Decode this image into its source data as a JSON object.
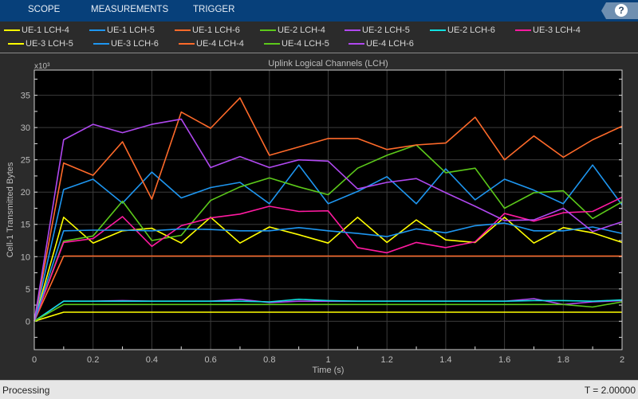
{
  "toolbar": {
    "tabs": [
      "SCOPE",
      "MEASUREMENTS",
      "TRIGGER"
    ],
    "help_label": "?"
  },
  "legend": [
    {
      "label": "UE-1 LCH-4",
      "color": "#ffff00"
    },
    {
      "label": "UE-1 LCH-5",
      "color": "#1e96f0"
    },
    {
      "label": "UE-1 LCH-6",
      "color": "#ff6a2a"
    },
    {
      "label": "UE-2 LCH-4",
      "color": "#5cc91a"
    },
    {
      "label": "UE-2 LCH-5",
      "color": "#b048f0"
    },
    {
      "label": "UE-2 LCH-6",
      "color": "#10e0e0"
    },
    {
      "label": "UE-3 LCH-4",
      "color": "#ff1aa0"
    },
    {
      "label": "UE-3 LCH-5",
      "color": "#ffff00"
    },
    {
      "label": "UE-3 LCH-6",
      "color": "#1e96f0"
    },
    {
      "label": "UE-4 LCH-4",
      "color": "#ff6a2a"
    },
    {
      "label": "UE-4 LCH-5",
      "color": "#5cc91a"
    },
    {
      "label": "UE-4 LCH-6",
      "color": "#b048f0"
    }
  ],
  "status": {
    "left": "Processing",
    "right": "T = 2.00000"
  },
  "chart_data": {
    "type": "line",
    "title": "Uplink Logical Channels (LCH)",
    "xlabel": "Time (s)",
    "ylabel": "Cell-1 Transmitted Bytes",
    "y_exponent_label": "x10³",
    "xlim": [
      0,
      2
    ],
    "ylim": [
      -4.4,
      38.9
    ],
    "xticks": [
      "0",
      "0.2",
      "0.4",
      "0.6",
      "0.8",
      "1",
      "1.2",
      "1.4",
      "1.6",
      "1.8",
      "2"
    ],
    "xtick_values": [
      0,
      0.2,
      0.4,
      0.6,
      0.8,
      1,
      1.2,
      1.4,
      1.6,
      1.8,
      2
    ],
    "yticks": [
      "0",
      "5",
      "10",
      "15",
      "20",
      "25",
      "30",
      "35"
    ],
    "ytick_values": [
      0,
      5,
      10,
      15,
      20,
      25,
      30,
      35
    ],
    "grid": true,
    "x": [
      0,
      0.1,
      0.2,
      0.3,
      0.4,
      0.5,
      0.6,
      0.7,
      0.8,
      0.9,
      1.0,
      1.1,
      1.2,
      1.3,
      1.4,
      1.5,
      1.6,
      1.7,
      1.8,
      1.9,
      2.0
    ],
    "series": [
      {
        "name": "UE-1 LCH-4",
        "values": [
          0,
          16.1,
          12.1,
          14.0,
          14.4,
          12.1,
          16.1,
          12.1,
          14.6,
          13.4,
          12.1,
          16.1,
          12.2,
          15.7,
          12.6,
          12.2,
          16.1,
          12.1,
          14.5,
          13.7,
          12.2
        ]
      },
      {
        "name": "UE-1 LCH-5",
        "values": [
          0,
          20.4,
          22.0,
          18.3,
          23.1,
          19.1,
          20.7,
          21.5,
          18.2,
          24.2,
          18.2,
          20.1,
          22.4,
          18.2,
          23.6,
          18.8,
          22.0,
          20.3,
          18.2,
          24.2,
          18.0
        ]
      },
      {
        "name": "UE-1 LCH-6",
        "values": [
          0,
          10.1,
          10.1,
          10.1,
          10.1,
          10.1,
          10.1,
          10.1,
          10.1,
          10.1,
          10.1,
          10.1,
          10.1,
          10.1,
          10.1,
          10.1,
          10.1,
          10.1,
          10.1,
          10.1,
          10.1
        ]
      },
      {
        "name": "UE-2 LCH-4",
        "values": [
          0,
          12.4,
          13.2,
          18.6,
          12.5,
          13.3,
          18.7,
          20.8,
          22.2,
          20.8,
          19.6,
          23.7,
          25.7,
          27.3,
          23.0,
          23.7,
          17.5,
          19.9,
          20.2,
          15.9,
          18.5
        ]
      },
      {
        "name": "UE-2 LCH-5",
        "values": [
          0,
          3.1,
          3.1,
          3.2,
          3.1,
          3.1,
          3.1,
          3.4,
          2.9,
          3.1,
          3.1,
          3.1,
          3.1,
          3.1,
          3.1,
          3.1,
          3.1,
          3.5,
          2.6,
          3.0,
          3.2
        ]
      },
      {
        "name": "UE-2 LCH-6",
        "values": [
          0,
          3.1,
          3.1,
          3.1,
          3.1,
          3.1,
          3.1,
          3.1,
          3.0,
          3.4,
          3.2,
          3.1,
          3.1,
          3.1,
          3.1,
          3.1,
          3.1,
          3.2,
          3.2,
          3.1,
          3.3
        ]
      },
      {
        "name": "UE-3 LCH-4",
        "values": [
          0,
          12.2,
          12.8,
          16.2,
          11.6,
          14.8,
          16.0,
          16.6,
          17.8,
          17.0,
          17.1,
          11.4,
          10.6,
          12.2,
          11.4,
          12.3,
          16.7,
          15.5,
          16.8,
          17.0,
          19.2
        ]
      },
      {
        "name": "UE-3 LCH-5",
        "values": [
          0,
          1.4,
          1.4,
          1.4,
          1.4,
          1.4,
          1.4,
          1.4,
          1.4,
          1.4,
          1.4,
          1.4,
          1.4,
          1.4,
          1.4,
          1.4,
          1.4,
          1.4,
          1.4,
          1.4,
          1.4
        ]
      },
      {
        "name": "UE-3 LCH-6",
        "values": [
          0,
          14.0,
          14.1,
          14.1,
          14.0,
          14.3,
          14.2,
          14.0,
          14.0,
          14.5,
          14.0,
          13.6,
          13.1,
          14.3,
          13.7,
          14.8,
          15.2,
          14.0,
          14.0,
          14.6,
          13.6
        ]
      },
      {
        "name": "UE-4 LCH-4",
        "values": [
          0,
          24.5,
          22.6,
          27.8,
          18.9,
          32.4,
          29.9,
          34.6,
          25.7,
          27.0,
          28.3,
          28.3,
          26.6,
          27.3,
          27.6,
          31.6,
          25.0,
          28.7,
          25.4,
          28.1,
          30.2
        ]
      },
      {
        "name": "UE-4 LCH-5",
        "values": [
          0,
          2.6,
          2.6,
          2.6,
          2.6,
          2.6,
          2.6,
          2.6,
          2.6,
          2.6,
          2.6,
          2.6,
          2.6,
          2.6,
          2.6,
          2.6,
          2.6,
          2.6,
          2.6,
          2.2,
          3.0
        ]
      },
      {
        "name": "UE-4 LCH-6",
        "values": [
          0,
          28.1,
          30.5,
          29.2,
          30.5,
          31.3,
          23.8,
          25.5,
          23.8,
          25.0,
          24.8,
          20.5,
          21.5,
          22.1,
          19.9,
          17.8,
          15.6,
          15.7,
          17.5,
          13.9,
          15.4
        ]
      }
    ]
  }
}
